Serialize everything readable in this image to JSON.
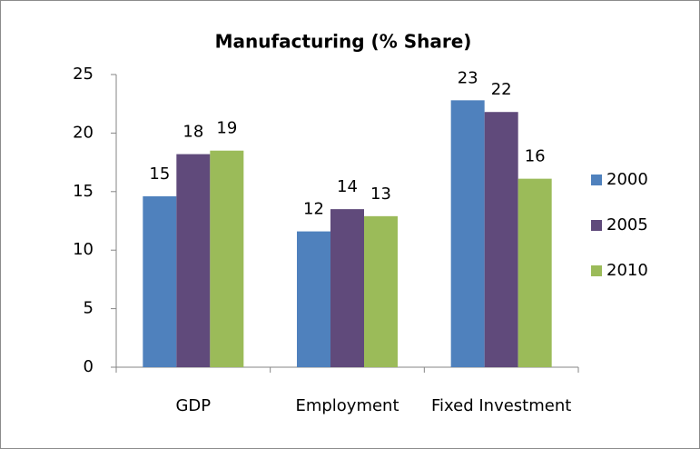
{
  "chart_data": {
    "type": "bar",
    "title": "Manufacturing (% Share)",
    "categories": [
      "GDP",
      "Employment",
      "Fixed Investment"
    ],
    "series": [
      {
        "name": "2000",
        "color": "#4f81bd",
        "values": [
          14.6,
          11.6,
          22.8
        ],
        "value_labels": [
          "15",
          "12",
          "23"
        ]
      },
      {
        "name": "2005",
        "color": "#604a7b",
        "values": [
          18.2,
          13.5,
          21.8
        ],
        "value_labels": [
          "18",
          "14",
          "22"
        ]
      },
      {
        "name": "2010",
        "color": "#9bbb59",
        "values": [
          18.5,
          12.9,
          16.1
        ],
        "value_labels": [
          "19",
          "13",
          "16"
        ]
      }
    ],
    "ylim": [
      0,
      25
    ],
    "yticks": [
      0,
      5,
      10,
      15,
      20,
      25
    ],
    "grid": false,
    "legend": "right"
  }
}
